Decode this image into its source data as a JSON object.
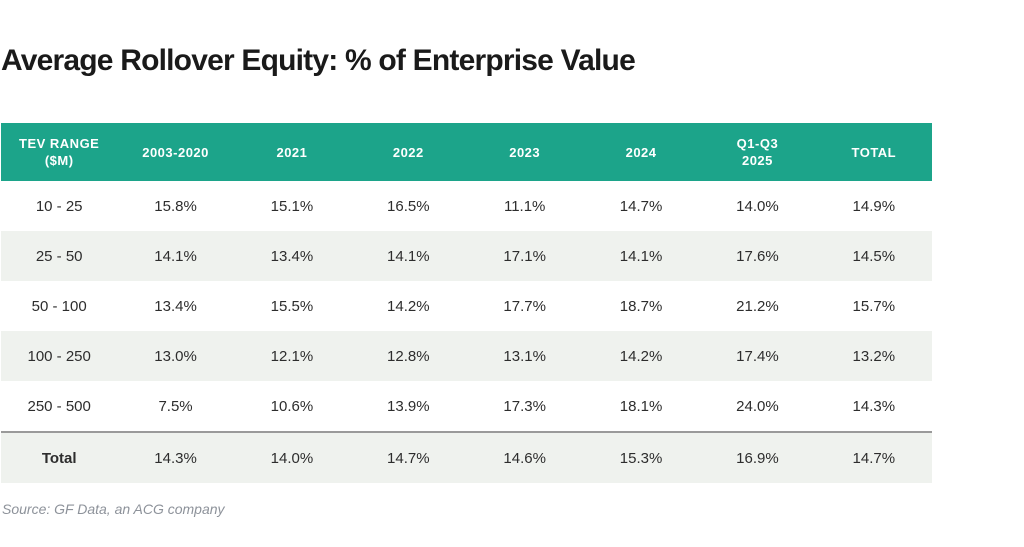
{
  "title": "Average Rollover Equity: % of Enterprise Value",
  "source": "Source: GF Data, an ACG company",
  "colors": {
    "header_bg": "#1CA48A",
    "header_text": "#FFFFFF",
    "row_alt_bg": "#EFF2EE",
    "cell_text": "#2D2D2D",
    "title_text": "#1A1A1A",
    "source_text": "#8D929A",
    "total_divider": "#9A9A9A"
  },
  "table": {
    "columns": [
      "TEV RANGE\n($M)",
      "2003-2020",
      "2021",
      "2022",
      "2023",
      "2024",
      "Q1-Q3\n2025",
      "TOTAL"
    ],
    "rows": [
      {
        "label": "10 - 25",
        "values": [
          "15.8%",
          "15.1%",
          "16.5%",
          "11.1%",
          "14.7%",
          "14.0%",
          "14.9%"
        ]
      },
      {
        "label": "25 - 50",
        "values": [
          "14.1%",
          "13.4%",
          "14.1%",
          "17.1%",
          "14.1%",
          "17.6%",
          "14.5%"
        ]
      },
      {
        "label": "50 - 100",
        "values": [
          "13.4%",
          "15.5%",
          "14.2%",
          "17.7%",
          "18.7%",
          "21.2%",
          "15.7%"
        ]
      },
      {
        "label": "100 - 250",
        "values": [
          "13.0%",
          "12.1%",
          "12.8%",
          "13.1%",
          "14.2%",
          "17.4%",
          "13.2%"
        ]
      },
      {
        "label": "250 - 500",
        "values": [
          "7.5%",
          "10.6%",
          "13.9%",
          "17.3%",
          "18.1%",
          "24.0%",
          "14.3%"
        ]
      },
      {
        "label": "Total",
        "values": [
          "14.3%",
          "14.0%",
          "14.7%",
          "14.6%",
          "15.3%",
          "16.9%",
          "14.7%"
        ]
      }
    ]
  },
  "chart_data": {
    "type": "table",
    "title": "Average Rollover Equity: % of Enterprise Value",
    "row_header": "TEV RANGE ($M)",
    "columns": [
      "2003-2020",
      "2021",
      "2022",
      "2023",
      "2024",
      "Q1-Q3 2025",
      "TOTAL"
    ],
    "units": "percent of enterprise value",
    "series": [
      {
        "name": "10 - 25",
        "values": [
          15.8,
          15.1,
          16.5,
          11.1,
          14.7,
          14.0,
          14.9
        ]
      },
      {
        "name": "25 - 50",
        "values": [
          14.1,
          13.4,
          14.1,
          17.1,
          14.1,
          17.6,
          14.5
        ]
      },
      {
        "name": "50 - 100",
        "values": [
          13.4,
          15.5,
          14.2,
          17.7,
          18.7,
          21.2,
          15.7
        ]
      },
      {
        "name": "100 - 250",
        "values": [
          13.0,
          12.1,
          12.8,
          13.1,
          14.2,
          17.4,
          13.2
        ]
      },
      {
        "name": "250 - 500",
        "values": [
          7.5,
          10.6,
          13.9,
          17.3,
          18.1,
          24.0,
          14.3
        ]
      },
      {
        "name": "Total",
        "values": [
          14.3,
          14.0,
          14.7,
          14.6,
          15.3,
          16.9,
          14.7
        ]
      }
    ],
    "source": "Source: GF Data, an ACG company"
  }
}
